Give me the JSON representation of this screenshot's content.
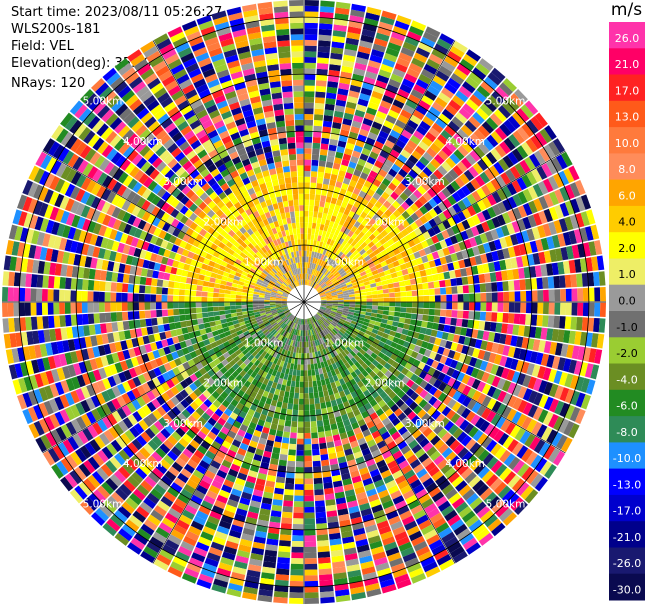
{
  "header": {
    "start_time": "Start time: 2023/08/11 05:26:27",
    "station": "WLS200s-181",
    "field": "Field: VEL",
    "elevation": "Elevation(deg): 35.30",
    "nrays": "NRays: 120"
  },
  "chart_data": {
    "type": "heatmap",
    "subtype": "ppi-polar",
    "field": "VEL",
    "nrays": 120,
    "range_rings_km": [
      1,
      2,
      3,
      4,
      5
    ],
    "range_ring_labels": [
      "1.00km",
      "2.00km",
      "3.00km",
      "4.00km",
      "5.00km"
    ],
    "azimuth_spokes_deg": [
      0,
      30,
      60,
      90,
      120,
      150,
      180,
      210,
      240,
      270,
      300,
      330
    ],
    "max_range_km": 5.3,
    "clean_region_km": 2.3,
    "description_sectors": [
      {
        "azimuth_deg": [
          270,
          90
        ],
        "range_km": [
          0.3,
          2.3
        ],
        "value_range": [
          0,
          6
        ],
        "dominant": "positive"
      },
      {
        "azimuth_deg": [
          90,
          270
        ],
        "range_km": [
          0.3,
          2.3
        ],
        "value_range": [
          -8,
          -2
        ],
        "dominant": "negative"
      }
    ],
    "outer_region": "noise",
    "colorbar": {
      "units": "m/s",
      "vmin": -30,
      "vmax": 30,
      "ticks": [
        "26.0",
        "21.0",
        "17.0",
        "13.0",
        "10.0",
        "8.0",
        "6.0",
        "4.0",
        "2.0",
        "1.0",
        "0.0",
        "-1.0",
        "-2.0",
        "-4.0",
        "-6.0",
        "-8.0",
        "-10.0",
        "-13.0",
        "-17.0",
        "-21.0",
        "-26.0",
        "-30.0"
      ],
      "colors": [
        "#ff33aa",
        "#ff0066",
        "#ff2222",
        "#ff5a1a",
        "#ff7a3c",
        "#ff8c5a",
        "#ffa500",
        "#ffcc00",
        "#ffff00",
        "#eeee66",
        "#9a9a9a",
        "#707070",
        "#9acd32",
        "#6b8e23",
        "#228b22",
        "#2e8b57",
        "#1e90ff",
        "#0000ff",
        "#0000cd",
        "#00008b",
        "#191970",
        "#0a0a50"
      ]
    }
  }
}
